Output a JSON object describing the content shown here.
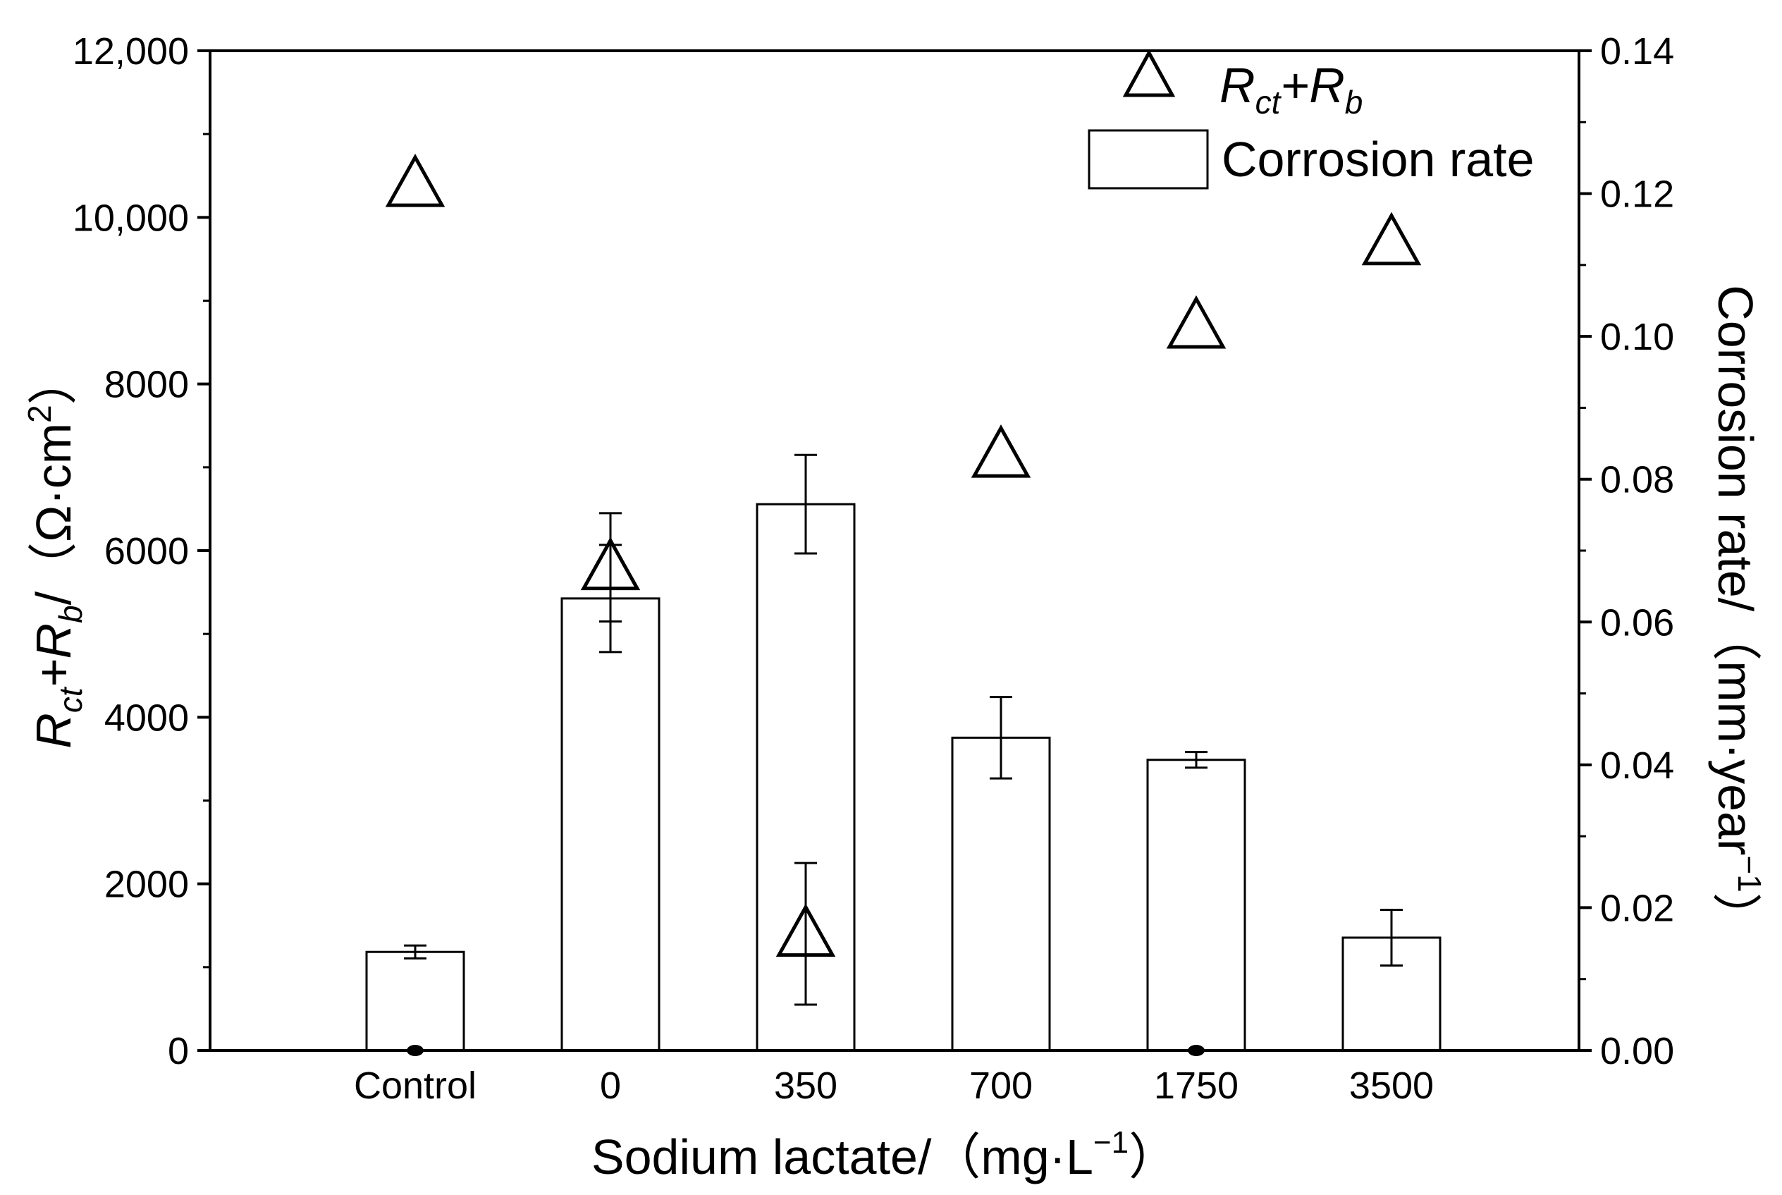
{
  "chart_data": {
    "type": "bar",
    "categories": [
      "Control",
      "0",
      "350",
      "700",
      "1750",
      "3500"
    ],
    "xlabel": "Sodium lactate/（mg·L",
    "xlabel_sup": "−1",
    "xlabel_end": "）",
    "ylabel_left": {
      "main": "R",
      "sub1": "ct",
      "plus": "+R",
      "sub2": "b",
      "slash": "/（Ω·cm",
      "sup": "2",
      "end": "）"
    },
    "ylabel_right": "Corrosion rate/（mm·year",
    "ylabel_right_sup": "−1",
    "ylabel_right_end": "）",
    "y_left_lim": [
      0,
      12000
    ],
    "y_right_lim": [
      0,
      0.14
    ],
    "y_left_ticks": [
      "0",
      "2000",
      "4000",
      "6000",
      "8000",
      "10,000",
      "12,000"
    ],
    "y_left_tick_values": [
      0,
      2000,
      4000,
      6000,
      8000,
      10000,
      12000
    ],
    "y_right_ticks": [
      "0.00",
      "0.02",
      "0.04",
      "0.06",
      "0.08",
      "0.10",
      "0.12",
      "0.14"
    ],
    "y_right_tick_values": [
      0,
      0.02,
      0.04,
      0.06,
      0.08,
      0.1,
      0.12,
      0.14
    ],
    "grid": false,
    "legend_position": "top-right",
    "series": [
      {
        "name": "Corrosion rate",
        "axis": "right",
        "kind": "bar",
        "values": [
          0.0138,
          0.0633,
          0.0765,
          0.0438,
          0.0407,
          0.0158
        ],
        "errors": [
          0.0009,
          0.0075,
          0.0069,
          0.0057,
          0.0011,
          0.0039
        ]
      },
      {
        "name": "Rct+Rb",
        "axis": "left",
        "kind": "triangle",
        "x_index": [
          0,
          1,
          2,
          3,
          4,
          5
        ],
        "values": [
          10400,
          5800,
          1400,
          7150,
          8700,
          9700
        ],
        "errors": [
          0,
          650,
          850,
          0,
          0,
          0
        ]
      }
    ],
    "legend": {
      "triangle_main": "R",
      "triangle_sub1": "ct",
      "triangle_plus": "+R",
      "triangle_sub2": "b",
      "bar_label": "Corrosion rate"
    }
  }
}
